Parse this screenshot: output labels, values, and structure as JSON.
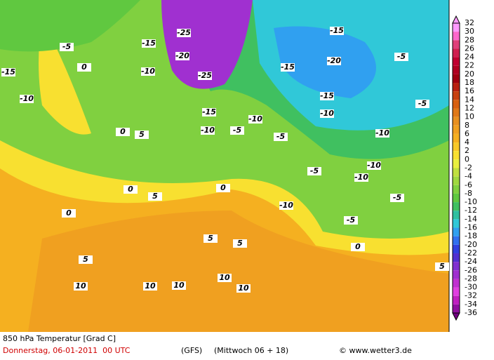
{
  "map": {
    "title": "850 hPa Temperatur [Grad C]",
    "date": "Donnerstag, 06-01-2011  00 UTC",
    "model": "(GFS)",
    "run": "(Mittwoch 06 + 18)",
    "credit": "© www.wetter3.de",
    "scale": {
      "labels": [
        32,
        30,
        28,
        26,
        24,
        22,
        20,
        18,
        16,
        14,
        12,
        10,
        8,
        6,
        4,
        2,
        0,
        -2,
        -4,
        -6,
        -8,
        -10,
        -12,
        -14,
        -16,
        -18,
        -20,
        -22,
        -24,
        -26,
        -28,
        -30,
        -32,
        -34,
        -36
      ],
      "colors": [
        "#ff99ff",
        "#ff66cc",
        "#e0407a",
        "#d02050",
        "#c00030",
        "#b00020",
        "#a00010",
        "#b82010",
        "#c84010",
        "#d86010",
        "#e07818",
        "#e89020",
        "#f0a020",
        "#f5b020",
        "#f8c828",
        "#f8e030",
        "#e8f040",
        "#c0e040",
        "#a0d840",
        "#80d040",
        "#60c840",
        "#40c060",
        "#30c0a0",
        "#30c8d8",
        "#30a0f0",
        "#3070f0",
        "#3040e0",
        "#5030d0",
        "#8030d0",
        "#a030d0",
        "#c030d0",
        "#e040e0",
        "#c020c0",
        "#9010a0",
        "#700080"
      ]
    },
    "contour_labels": [
      -15,
      -10,
      -5,
      0,
      -15,
      -10,
      -25,
      -20,
      -25,
      -15,
      -10,
      -5,
      -10,
      -5,
      -15,
      -20,
      -15,
      -15,
      -10,
      -10,
      -10,
      -10,
      -5,
      -5,
      -5,
      -5,
      -5,
      0,
      5,
      0,
      5,
      0,
      0,
      -10,
      5,
      5,
      5,
      10,
      10,
      10,
      10,
      10,
      0,
      5
    ]
  }
}
